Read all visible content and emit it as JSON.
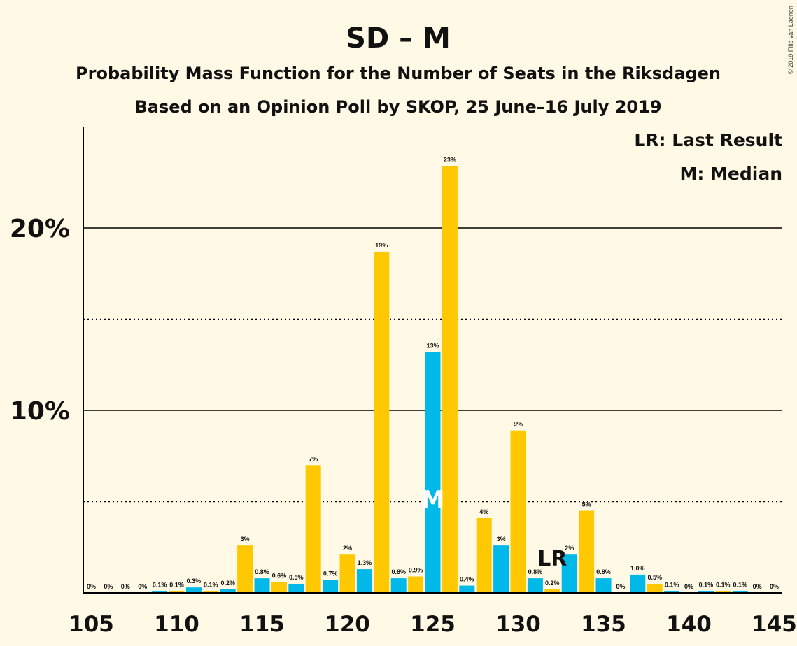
{
  "chart_data": {
    "type": "bar",
    "title": "SD – M",
    "subtitle1": "Probability Mass Function for the Number of Seats in the Riksdagen",
    "subtitle2": "Based on an Opinion Poll by SKOP, 25 June–16 July 2019",
    "copyright": "© 2019 Filip van Laenen",
    "legend": {
      "lr": "LR: Last Result",
      "median": "M: Median",
      "placement": "top-right"
    },
    "xlim": [
      105,
      145
    ],
    "ylim": [
      0,
      25
    ],
    "x_ticks": [
      "105",
      "110",
      "115",
      "120",
      "125",
      "130",
      "135",
      "140",
      "145"
    ],
    "y_ticks": [
      {
        "value": 10,
        "label": "10%"
      },
      {
        "value": 20,
        "label": "20%"
      }
    ],
    "gridlines": {
      "solid": [
        10,
        20
      ],
      "dotted": [
        5,
        15
      ]
    },
    "colors": {
      "yellow": "#FFC800",
      "blue": "#00B9E8",
      "background": "#FFF9E5"
    },
    "median_seat": 125,
    "median_label": "M",
    "last_result_seat": 132,
    "last_result_label": "LR",
    "bars": [
      {
        "seat": 105,
        "value": 0,
        "label": "0%",
        "color": "blue"
      },
      {
        "seat": 106,
        "value": 0,
        "label": "0%",
        "color": "yellow"
      },
      {
        "seat": 107,
        "value": 0,
        "label": "0%",
        "color": "blue"
      },
      {
        "seat": 108,
        "value": 0,
        "label": "0%",
        "color": "yellow"
      },
      {
        "seat": 109,
        "value": 0.1,
        "label": "0.1%",
        "color": "blue"
      },
      {
        "seat": 110,
        "value": 0.1,
        "label": "0.1%",
        "color": "yellow"
      },
      {
        "seat": 111,
        "value": 0.3,
        "label": "0.3%",
        "color": "blue"
      },
      {
        "seat": 112,
        "value": 0.1,
        "label": "0.1%",
        "color": "yellow"
      },
      {
        "seat": 113,
        "value": 0.2,
        "label": "0.2%",
        "color": "blue"
      },
      {
        "seat": 114,
        "value": 2.6,
        "label": "3%",
        "color": "yellow"
      },
      {
        "seat": 115,
        "value": 0.8,
        "label": "0.8%",
        "color": "blue"
      },
      {
        "seat": 116,
        "value": 0.6,
        "label": "0.6%",
        "color": "yellow"
      },
      {
        "seat": 117,
        "value": 0.5,
        "label": "0.5%",
        "color": "blue"
      },
      {
        "seat": 118,
        "value": 7.0,
        "label": "7%",
        "color": "yellow"
      },
      {
        "seat": 119,
        "value": 0.7,
        "label": "0.7%",
        "color": "blue"
      },
      {
        "seat": 120,
        "value": 2.1,
        "label": "2%",
        "color": "yellow"
      },
      {
        "seat": 121,
        "value": 1.3,
        "label": "1.3%",
        "color": "blue"
      },
      {
        "seat": 122,
        "value": 18.7,
        "label": "19%",
        "color": "yellow"
      },
      {
        "seat": 123,
        "value": 0.8,
        "label": "0.8%",
        "color": "blue"
      },
      {
        "seat": 124,
        "value": 0.9,
        "label": "0.9%",
        "color": "yellow"
      },
      {
        "seat": 125,
        "value": 13.2,
        "label": "13%",
        "color": "blue"
      },
      {
        "seat": 126,
        "value": 23.4,
        "label": "23%",
        "color": "yellow"
      },
      {
        "seat": 127,
        "value": 0.4,
        "label": "0.4%",
        "color": "blue"
      },
      {
        "seat": 128,
        "value": 4.1,
        "label": "4%",
        "color": "yellow"
      },
      {
        "seat": 129,
        "value": 2.6,
        "label": "3%",
        "color": "blue"
      },
      {
        "seat": 130,
        "value": 8.9,
        "label": "9%",
        "color": "yellow"
      },
      {
        "seat": 131,
        "value": 0.8,
        "label": "0.8%",
        "color": "blue"
      },
      {
        "seat": 132,
        "value": 0.2,
        "label": "0.2%",
        "color": "yellow"
      },
      {
        "seat": 133,
        "value": 2.1,
        "label": "2%",
        "color": "blue"
      },
      {
        "seat": 134,
        "value": 4.5,
        "label": "5%",
        "color": "yellow"
      },
      {
        "seat": 135,
        "value": 0.8,
        "label": "0.8%",
        "color": "blue"
      },
      {
        "seat": 136,
        "value": 0,
        "label": "0%",
        "color": "yellow"
      },
      {
        "seat": 137,
        "value": 1.0,
        "label": "1.0%",
        "color": "blue"
      },
      {
        "seat": 138,
        "value": 0.5,
        "label": "0.5%",
        "color": "yellow"
      },
      {
        "seat": 139,
        "value": 0.1,
        "label": "0.1%",
        "color": "blue"
      },
      {
        "seat": 140,
        "value": 0,
        "label": "0%",
        "color": "yellow"
      },
      {
        "seat": 141,
        "value": 0.1,
        "label": "0.1%",
        "color": "blue"
      },
      {
        "seat": 142,
        "value": 0.1,
        "label": "0.1%",
        "color": "yellow"
      },
      {
        "seat": 143,
        "value": 0.1,
        "label": "0.1%",
        "color": "blue"
      },
      {
        "seat": 144,
        "value": 0,
        "label": "0%",
        "color": "yellow"
      },
      {
        "seat": 145,
        "value": 0,
        "label": "0%",
        "color": "blue"
      }
    ]
  }
}
